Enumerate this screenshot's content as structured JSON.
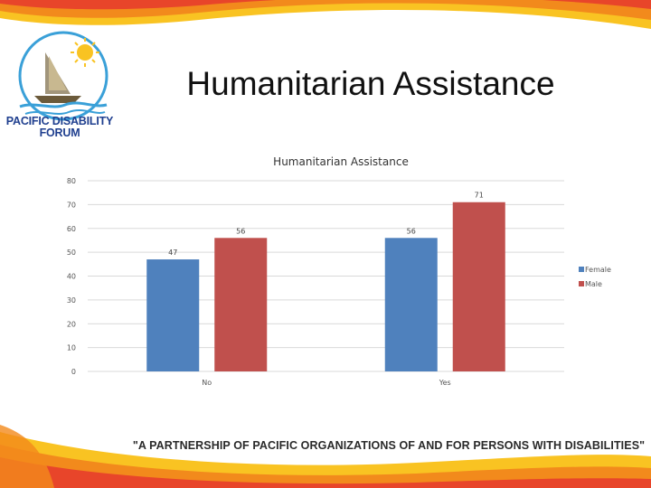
{
  "slide": {
    "title": "Humanitarian Assistance",
    "logo_lines": [
      "PACIFIC DISABILITY",
      "FORUM"
    ],
    "footer": "\"A PARTNERSHIP OF PACIFIC ORGANIZATIONS OF AND FOR PERSONS WITH DISABILITIES\""
  },
  "colors": {
    "female": "#4f81bd",
    "male": "#c0504d",
    "grid": "#d9d9d9",
    "swoosh_orange": "#f28a1c",
    "swoosh_yellow": "#f9c322",
    "swoosh_red": "#e8452a",
    "logo_blue": "#1f3f8f"
  },
  "chart_data": {
    "type": "bar",
    "title": "Humanitarian Assistance",
    "categories": [
      "No",
      "Yes"
    ],
    "series": [
      {
        "name": "Female",
        "values": [
          47,
          56
        ]
      },
      {
        "name": "Male",
        "values": [
          56,
          71
        ]
      }
    ],
    "ylim": [
      0,
      80
    ],
    "yticks": [
      0,
      10,
      20,
      30,
      40,
      50,
      60,
      70,
      80
    ],
    "grid": true,
    "legend": "right",
    "data_labels": [
      [
        "47",
        "56"
      ],
      [
        "56",
        "71"
      ]
    ]
  }
}
